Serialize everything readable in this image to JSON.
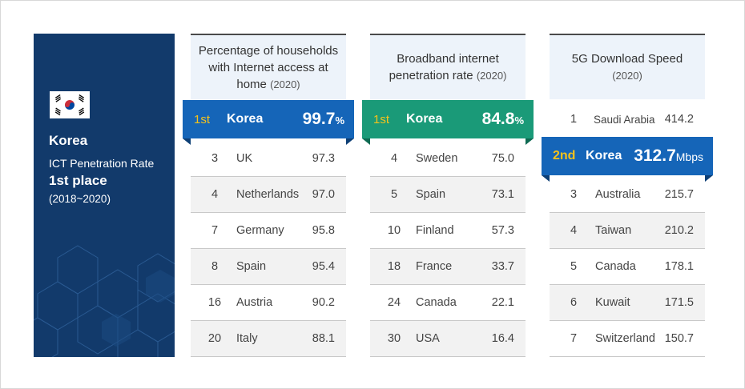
{
  "side": {
    "country": "Korea",
    "metric": "ICT Penetration Rate",
    "place": "1st place",
    "years": "(2018~2020)"
  },
  "colors": {
    "navy": "#123a6b",
    "blue": "#1565b8",
    "green": "#1a9a78",
    "gold": "#f5c21b"
  },
  "tables": [
    {
      "title": "Percentage of households with Internet access at home",
      "year": "(2020)",
      "highlight": {
        "rank": "1st",
        "name": "Korea",
        "value": "99.7",
        "unit": "%"
      },
      "rows": [
        {
          "rank": "3",
          "name": "UK",
          "value": "97.3"
        },
        {
          "rank": "4",
          "name": "Netherlands",
          "value": "97.0"
        },
        {
          "rank": "7",
          "name": "Germany",
          "value": "95.8"
        },
        {
          "rank": "8",
          "name": "Spain",
          "value": "95.4"
        },
        {
          "rank": "16",
          "name": "Austria",
          "value": "90.2"
        },
        {
          "rank": "20",
          "name": "Italy",
          "value": "88.1"
        }
      ]
    },
    {
      "title": "Broadband internet penetration rate",
      "year": "(2020)",
      "highlight": {
        "rank": "1st",
        "name": "Korea",
        "value": "84.8",
        "unit": "%"
      },
      "rows": [
        {
          "rank": "4",
          "name": "Sweden",
          "value": "75.0"
        },
        {
          "rank": "5",
          "name": "Spain",
          "value": "73.1"
        },
        {
          "rank": "10",
          "name": "Finland",
          "value": "57.3"
        },
        {
          "rank": "18",
          "name": "France",
          "value": "33.7"
        },
        {
          "rank": "24",
          "name": "Canada",
          "value": "22.1"
        },
        {
          "rank": "30",
          "name": "USA",
          "value": "16.4"
        }
      ]
    },
    {
      "title": "5G Download Speed",
      "year": "(2020)",
      "top_row": {
        "rank": "1",
        "name": "Saudi Arabia",
        "value": "414.2"
      },
      "highlight": {
        "rank": "2nd",
        "name": "Korea",
        "value": "312.7",
        "unit": "Mbps"
      },
      "rows": [
        {
          "rank": "3",
          "name": "Australia",
          "value": "215.7"
        },
        {
          "rank": "4",
          "name": "Taiwan",
          "value": "210.2"
        },
        {
          "rank": "5",
          "name": "Canada",
          "value": "178.1"
        },
        {
          "rank": "6",
          "name": "Kuwait",
          "value": "171.5"
        },
        {
          "rank": "7",
          "name": "Switzerland",
          "value": "150.7"
        }
      ]
    }
  ]
}
